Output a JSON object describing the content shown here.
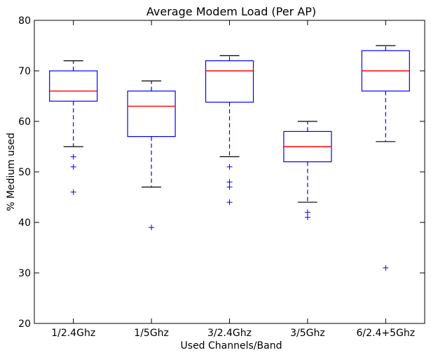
{
  "chart_data": {
    "type": "box",
    "title": "Average Modem Load (Per AP)",
    "xlabel": "Used Channels/Band",
    "ylabel": "% Medium used",
    "ylim": [
      20,
      80
    ],
    "yticks": [
      20,
      30,
      40,
      50,
      60,
      70,
      80
    ],
    "grid": false,
    "categories": [
      "1/2.4Ghz",
      "1/5Ghz",
      "3/2.4Ghz",
      "3/5Ghz",
      "6/2.4+5Ghz"
    ],
    "boxes": [
      {
        "category": "1/2.4Ghz",
        "whisker_low": 55,
        "q1": 64,
        "median": 66,
        "q3": 70,
        "whisker_high": 72,
        "outliers": [
          53,
          51,
          46
        ]
      },
      {
        "category": "1/5Ghz",
        "whisker_low": 47,
        "q1": 57,
        "median": 63,
        "q3": 66,
        "whisker_high": 68,
        "outliers": [
          39
        ]
      },
      {
        "category": "3/2.4Ghz",
        "whisker_low": 53,
        "q1": 63.8,
        "median": 70,
        "q3": 72,
        "whisker_high": 73,
        "outliers": [
          51,
          48,
          47,
          44
        ]
      },
      {
        "category": "3/5Ghz",
        "whisker_low": 44,
        "q1": 52,
        "median": 55,
        "q3": 58,
        "whisker_high": 60,
        "outliers": [
          42,
          41
        ]
      },
      {
        "category": "6/2.4+5Ghz",
        "whisker_low": 56,
        "q1": 66,
        "median": 70,
        "q3": 74,
        "whisker_high": 75,
        "outliers": [
          31
        ]
      }
    ],
    "colors": {
      "box": "#0000ff",
      "median": "#ff0000",
      "whisker": "#0000ff",
      "cap": "#000000",
      "outlier": "#0000ff",
      "frame": "#000000"
    }
  }
}
